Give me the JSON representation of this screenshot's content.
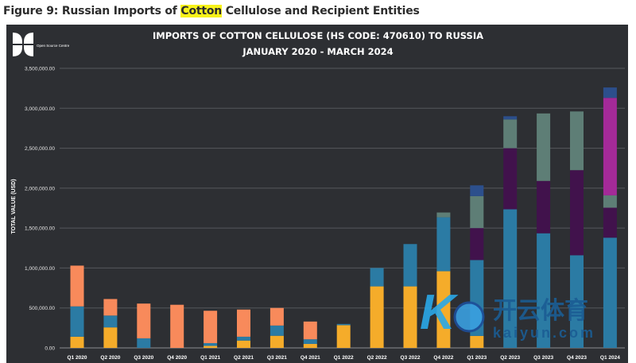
{
  "heading": {
    "prefix": "Figure 9: Russian Imports of ",
    "highlight": "Cotton",
    "suffix": " Cellulose and Recipient Entities"
  },
  "logo": {
    "text": "Open Source Centre"
  },
  "watermark": {
    "cn": "开云体育",
    "en": "kaiyun.com"
  },
  "colors": {
    "yellow": "#f5ac2a",
    "blue": "#2b7ba4",
    "orange": "#f88a5b",
    "purple": "#41124c",
    "grey": "#5e7e76",
    "magenta": "#a42a98",
    "navy": "#2c4f8c"
  },
  "chart_data": {
    "type": "bar",
    "stacked": true,
    "title": "IMPORTS OF COTTON CELLULOSE (HS CODE: 470610) TO RUSSIA",
    "subtitle": "JANUARY 2020 - MARCH 2024",
    "xlabel": "",
    "ylabel": "TOTAL VALUE (USD)",
    "ylim": [
      0,
      3500000
    ],
    "yticks": [
      "0.00",
      "500,000.00",
      "1,000,000.00",
      "1,500,000.00",
      "2,000,000.00",
      "2,500,000.00",
      "3,000,000.00",
      "3,500,000.00"
    ],
    "grid": true,
    "categories": [
      "Q1 2020",
      "Q2 2020",
      "Q3 2020",
      "Q4 2020",
      "Q1 2021",
      "Q2 2021",
      "Q3 2021",
      "Q4 2021",
      "Q1 2022",
      "Q2 2022",
      "Q3 2022",
      "Q4 2022",
      "Q1 2023",
      "Q2 2023",
      "Q3 2023",
      "Q4 2023",
      "Q1 2024"
    ],
    "series": [
      {
        "color": "#f5ac2a",
        "values": [
          140000,
          257000,
          0,
          0,
          25000,
          92000,
          152000,
          50000,
          285000,
          770000,
          770000,
          960000,
          150000,
          0,
          0,
          0,
          0
        ]
      },
      {
        "color": "#2b7ba4",
        "values": [
          380000,
          148000,
          120000,
          0,
          35000,
          48000,
          128000,
          58000,
          15000,
          230000,
          530000,
          675000,
          950000,
          1735000,
          1435000,
          1160000,
          1380000
        ]
      },
      {
        "color": "#f88a5b",
        "values": [
          510000,
          207000,
          435000,
          540000,
          405000,
          340000,
          220000,
          222000,
          0,
          0,
          0,
          0,
          0,
          0,
          0,
          0,
          0
        ]
      },
      {
        "color": "#41124c",
        "values": [
          0,
          0,
          0,
          0,
          0,
          0,
          0,
          0,
          0,
          0,
          0,
          0,
          400000,
          765000,
          655000,
          1065000,
          375000
        ]
      },
      {
        "color": "#5e7e76",
        "values": [
          0,
          0,
          0,
          0,
          0,
          0,
          0,
          0,
          0,
          0,
          0,
          60000,
          400000,
          360000,
          845000,
          735000,
          155000
        ]
      },
      {
        "color": "#a42a98",
        "values": [
          0,
          0,
          0,
          0,
          0,
          0,
          0,
          0,
          0,
          0,
          0,
          0,
          0,
          0,
          0,
          0,
          1220000
        ]
      },
      {
        "color": "#2c4f8c",
        "values": [
          0,
          0,
          0,
          0,
          0,
          0,
          0,
          0,
          0,
          0,
          0,
          0,
          135000,
          40000,
          0,
          0,
          130000
        ]
      }
    ]
  }
}
